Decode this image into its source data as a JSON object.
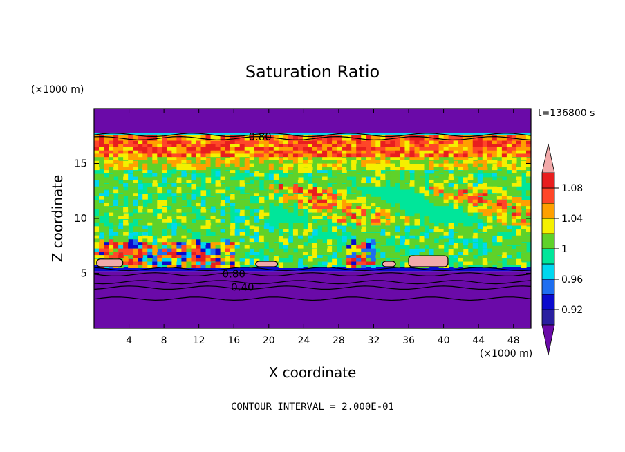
{
  "chart_data": {
    "type": "heatmap",
    "title": "Saturation Ratio",
    "xlabel": "X coordinate",
    "ylabel": "Z coordinate",
    "x_units": "(×1000 m)",
    "y_units": "(×1000 m)",
    "time_label": "t=136800 s",
    "footer": "CONTOUR INTERVAL = 2.000E-01",
    "xlim": [
      0,
      50
    ],
    "ylim": [
      0,
      20
    ],
    "x_ticks": [
      4,
      8,
      12,
      16,
      20,
      24,
      28,
      32,
      36,
      40,
      44,
      48
    ],
    "x_tick_labels": [
      "4",
      "8",
      "12",
      "16",
      "20",
      "24",
      "28",
      "32",
      "36",
      "40",
      "44",
      "48"
    ],
    "y_ticks": [
      5,
      10,
      15
    ],
    "y_tick_labels": [
      "5",
      "10",
      "15"
    ],
    "colorbar": {
      "levels": [
        0.9,
        0.92,
        0.94,
        0.96,
        0.98,
        1.0,
        1.02,
        1.04,
        1.06,
        1.08,
        1.1
      ],
      "tick_values": [
        0.92,
        0.96,
        1.0,
        1.04,
        1.08
      ],
      "tick_labels": [
        "0.92",
        "0.96",
        "1",
        "1.04",
        "1.08"
      ],
      "colors": [
        "#6a0aa8",
        "#2a1fa0",
        "#0a0acd",
        "#1e6ef0",
        "#00d8f0",
        "#00e69a",
        "#5fd22a",
        "#f5f000",
        "#ffa000",
        "#ff4628",
        "#e81e1e",
        "#f2aaaa"
      ],
      "under_color": "#6a0aa8",
      "over_color": "#f2aaaa"
    },
    "contour_labels": [
      {
        "text": "0.80",
        "x": 19.0,
        "y": 17.5
      },
      {
        "text": "0.80",
        "x": 16.0,
        "y": 5.0
      },
      {
        "text": "0.40",
        "x": 17.0,
        "y": 3.8
      }
    ],
    "field_bands": [
      {
        "z_from": 0,
        "z_to": 5.2,
        "value": 0.5
      },
      {
        "z_from": 5.2,
        "z_to": 5.6,
        "value": 0.93
      },
      {
        "z_from": 5.6,
        "z_to": 14.5,
        "value": 0.99
      },
      {
        "z_from": 14.5,
        "z_to": 15.6,
        "value": 1.01
      },
      {
        "z_from": 15.6,
        "z_to": 17.5,
        "value": 1.06
      },
      {
        "z_from": 17.5,
        "z_to": 17.8,
        "value": 0.97
      },
      {
        "z_from": 17.8,
        "z_to": 20,
        "value": 0.8
      }
    ],
    "over_regions": [
      {
        "x_from": 0.3,
        "x_to": 3.3,
        "z_from": 5.6,
        "z_to": 6.3
      },
      {
        "x_from": 18.5,
        "x_to": 21.0,
        "z_from": 5.6,
        "z_to": 6.1
      },
      {
        "x_from": 33.0,
        "x_to": 34.5,
        "z_from": 5.6,
        "z_to": 6.1
      },
      {
        "x_from": 36.0,
        "x_to": 40.5,
        "z_from": 5.6,
        "z_to": 6.6
      }
    ]
  }
}
